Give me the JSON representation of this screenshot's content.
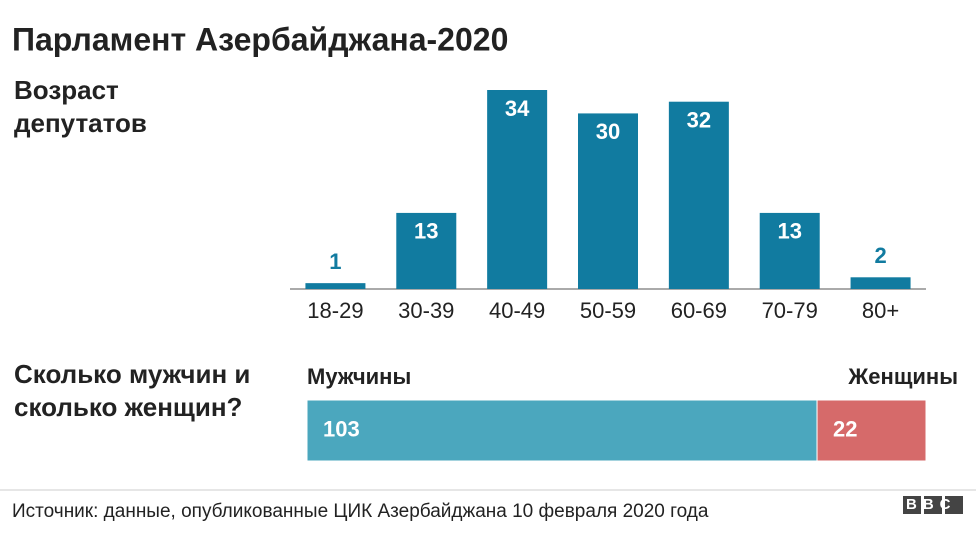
{
  "title": "Парламент Азербайджана-2020",
  "source": "Источник: данные, опубликованные ЦИК Азербайджана 10 февраля 2020 года",
  "logo": "BBC",
  "chart_data": [
    {
      "type": "bar",
      "title": "Возраст депутатов",
      "categories": [
        "18-29",
        "30-39",
        "40-49",
        "50-59",
        "60-69",
        "70-79",
        "80+"
      ],
      "values": [
        1,
        13,
        34,
        30,
        32,
        13,
        2
      ],
      "color": "#117ba0"
    },
    {
      "type": "stacked-bar",
      "title": "Сколько мужчин и сколько женщин?",
      "series": [
        {
          "name": "Мужчины",
          "color": "#4ba7be",
          "values": [
            103
          ]
        },
        {
          "name": "Женщины",
          "color": "#d66a6a",
          "values": [
            22
          ]
        }
      ]
    }
  ]
}
